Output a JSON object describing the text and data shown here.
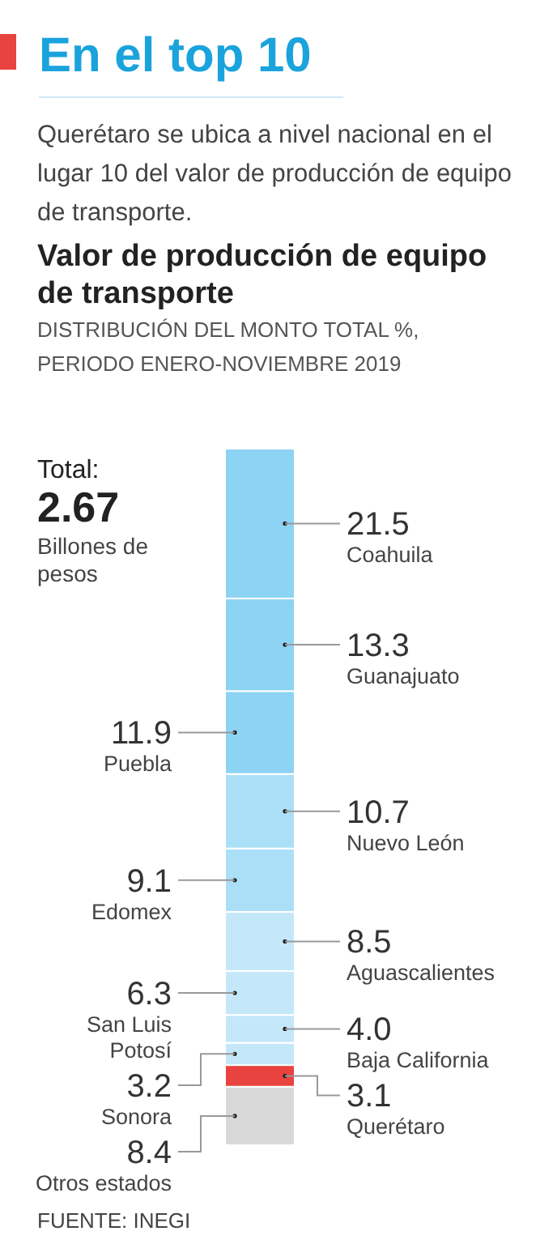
{
  "chart_data": {
    "type": "bar",
    "stacked": true,
    "title": "En el top 10",
    "subtitle": "Querétaro se ubica a nivel nacional en el lugar 10 del valor de producción de equipo de transporte.",
    "annotations": [
      "Valor de producción de equipo de transporte",
      "DISTRIBUCIÓN DEL MONTO TOTAL %, PERIODO ENERO-NOVIEMBRE 2019",
      "Total:",
      "2.67",
      "Billones de pesos",
      "FUENTE: INEGI"
    ],
    "categories": [
      null
    ],
    "series": [
      {
        "name": "Otros estados",
        "color": "#d9d9d9",
        "values": [
          8.4
        ],
        "value_labels": [
          "8.4"
        ]
      },
      {
        "name": "Querétaro",
        "color": "#e8433f",
        "values": [
          3.1
        ],
        "value_labels": [
          "3.1"
        ]
      },
      {
        "name": "Sonora",
        "color": "#c4e8f9",
        "values": [
          3.2
        ],
        "value_labels": [
          "3.2"
        ]
      },
      {
        "name": "Baja California",
        "color": "#c4e8f9",
        "values": [
          4.0
        ],
        "value_labels": [
          "4.0"
        ]
      },
      {
        "name": "San Luis Potosí",
        "color": "#c4e8f9",
        "values": [
          6.3
        ],
        "value_labels": [
          "6.3"
        ]
      },
      {
        "name": "Aguascalientes",
        "color": "#c4e8f9",
        "values": [
          8.5
        ],
        "value_labels": [
          "8.5"
        ]
      },
      {
        "name": "Edomex",
        "color": "#aadff7",
        "values": [
          9.1
        ],
        "value_labels": [
          "9.1"
        ]
      },
      {
        "name": "Nuevo León",
        "color": "#aadff7",
        "values": [
          10.7
        ],
        "value_labels": [
          "10.7"
        ]
      },
      {
        "name": "Puebla",
        "color": "#8dd3f4",
        "values": [
          11.9
        ],
        "value_labels": [
          "11.9"
        ]
      },
      {
        "name": "Guanajuato",
        "color": "#8dd3f4",
        "values": [
          13.3
        ],
        "value_labels": [
          "13.3"
        ]
      },
      {
        "name": "Coahuila",
        "color": "#8dd3f4",
        "values": [
          21.5
        ],
        "value_labels": [
          "21.5"
        ]
      }
    ]
  }
}
